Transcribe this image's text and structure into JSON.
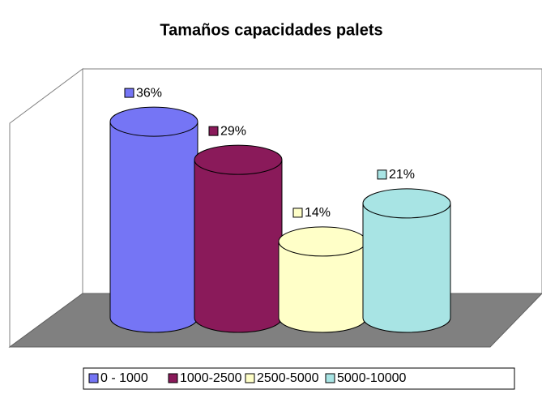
{
  "chart_data": {
    "type": "bar",
    "title": "Tamaños capacidades palets",
    "categories": [
      "0 - 1000",
      "1000-2500",
      "2500-5000",
      "5000-10000"
    ],
    "values": [
      36,
      29,
      14,
      21
    ],
    "value_labels": [
      "36%",
      "29%",
      "14%",
      "21%"
    ],
    "colors": [
      "#7575f5",
      "#8a1a5a",
      "#ffffc8",
      "#a8e4e4"
    ],
    "legend": "bottom"
  }
}
